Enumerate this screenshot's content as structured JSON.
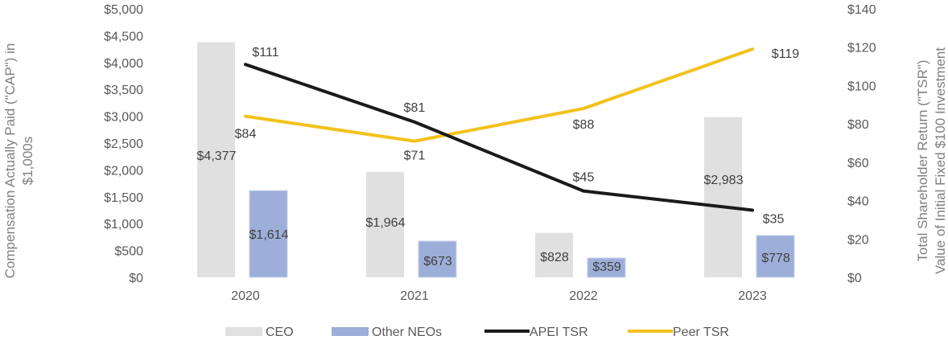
{
  "chart_data": {
    "type": "bar",
    "categories": [
      "2020",
      "2021",
      "2022",
      "2023"
    ],
    "y_left": {
      "label_lines": [
        "Compensation Actually Paid (\"CAP\") in",
        "$1,000s"
      ],
      "ticks": [
        "$0",
        "$500",
        "$1,000",
        "$1,500",
        "$2,000",
        "$2,500",
        "$3,000",
        "$3,500",
        "$4,000",
        "$4,500",
        "$5,000"
      ],
      "range": [
        0,
        5000
      ]
    },
    "y_right": {
      "label_lines": [
        "Total Shareholder Return (\"TSR\")",
        "Value of Initial Fixed $100 Investment"
      ],
      "ticks": [
        "$0",
        "$20",
        "$40",
        "$60",
        "$80",
        "$100",
        "$120",
        "$140"
      ],
      "range": [
        0,
        140
      ]
    },
    "series": [
      {
        "name": "CEO",
        "type": "bar",
        "axis": "left",
        "color": "#dfe0df",
        "values": [
          4377,
          1964,
          828,
          2983
        ],
        "labels": [
          "$4,377",
          "$1,964",
          "$828",
          "$2,983"
        ]
      },
      {
        "name": "Other NEOs",
        "type": "bar",
        "axis": "left",
        "color": "#9dafd9",
        "values": [
          1614,
          673,
          359,
          778
        ],
        "labels": [
          "$1,614",
          "$673",
          "$359",
          "$778"
        ]
      },
      {
        "name": "APEI TSR",
        "type": "line",
        "axis": "right",
        "color": "#1a1a1a",
        "values": [
          111,
          81,
          45,
          35
        ],
        "labels": [
          "$111",
          "$81",
          "$45",
          "$35"
        ]
      },
      {
        "name": "Peer TSR",
        "type": "line",
        "axis": "right",
        "color": "#f2c21b",
        "values": [
          84,
          71,
          88,
          119
        ],
        "labels": [
          "$84",
          "$71",
          "$88",
          "$119"
        ]
      }
    ],
    "grid": false,
    "legend_position": "bottom"
  }
}
